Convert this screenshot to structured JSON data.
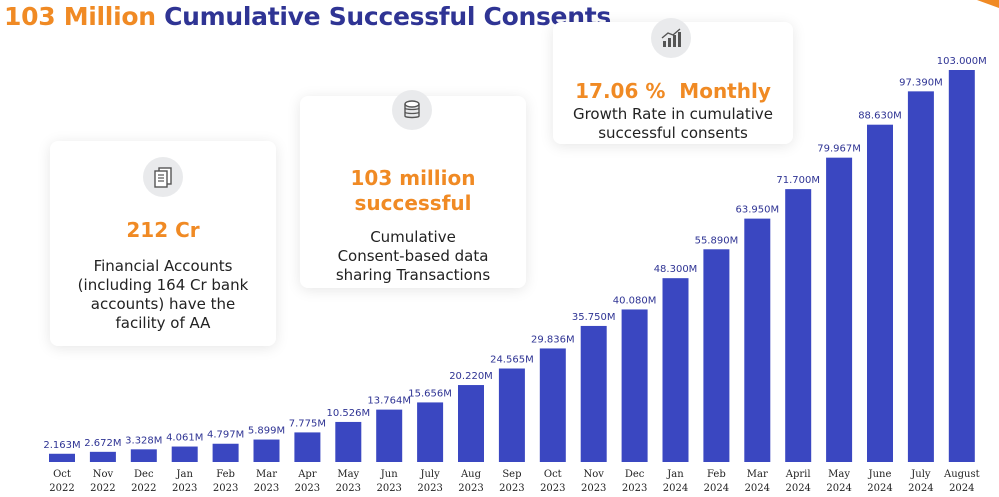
{
  "title": {
    "highlight": "103 Million",
    "rest": " Cumulative Successful Consents"
  },
  "cards": [
    {
      "icon": "documents-icon",
      "big": "212 Cr",
      "lines": [
        "Financial Accounts",
        "(including 164 Cr bank",
        "accounts) have the",
        "facility of AA"
      ]
    },
    {
      "icon": "database-icon",
      "big_lines": [
        "103 million",
        "successful"
      ],
      "lines": [
        "Cumulative",
        "Consent-based data",
        "sharing Transactions"
      ]
    },
    {
      "icon": "growth-chart-icon",
      "big": "17.06 %  Monthly",
      "lines": [
        "Growth Rate in cumulative",
        "successful consents"
      ]
    }
  ],
  "colors": {
    "bar": "#3a47c1",
    "accent": "#f08a24",
    "title": "#2f3494"
  },
  "chart_data": {
    "type": "bar",
    "title": "103 Million Cumulative Successful Consents",
    "xlabel": "",
    "ylabel": "",
    "unit": "M",
    "ylim": [
      0,
      103
    ],
    "categories": [
      [
        "Oct",
        "2022"
      ],
      [
        "Nov",
        "2022"
      ],
      [
        "Dec",
        "2022"
      ],
      [
        "Jan",
        "2023"
      ],
      [
        "Feb",
        "2023"
      ],
      [
        "Mar",
        "2023"
      ],
      [
        "Apr",
        "2023"
      ],
      [
        "May",
        "2023"
      ],
      [
        "Jun",
        "2023"
      ],
      [
        "July",
        "2023"
      ],
      [
        "Aug",
        "2023"
      ],
      [
        "Sep",
        "2023"
      ],
      [
        "Oct",
        "2023"
      ],
      [
        "Nov",
        "2023"
      ],
      [
        "Dec",
        "2023"
      ],
      [
        "Jan",
        "2024"
      ],
      [
        "Feb",
        "2024"
      ],
      [
        "Mar",
        "2024"
      ],
      [
        "April",
        "2024"
      ],
      [
        "May",
        "2024"
      ],
      [
        "June",
        "2024"
      ],
      [
        "July",
        "2024"
      ],
      [
        "August",
        "2024"
      ]
    ],
    "values": [
      2.163,
      2.672,
      3.328,
      4.061,
      4.797,
      5.899,
      7.775,
      10.526,
      13.764,
      15.656,
      20.22,
      24.565,
      29.836,
      35.75,
      40.08,
      48.3,
      55.89,
      63.95,
      71.7,
      79.967,
      88.63,
      97.39,
      103.0
    ],
    "labels": [
      "2.163M",
      "2.672M",
      "3.328M",
      "4.061M",
      "4.797M",
      "5.899M",
      "7.775M",
      "10.526M",
      "13.764M",
      "15.656M",
      "20.220M",
      "24.565M",
      "29.836M",
      "35.750M",
      "40.080M",
      "48.300M",
      "55.890M",
      "63.950M",
      "71.700M",
      "79.967M",
      "88.630M",
      "97.390M",
      "103.000M"
    ]
  }
}
